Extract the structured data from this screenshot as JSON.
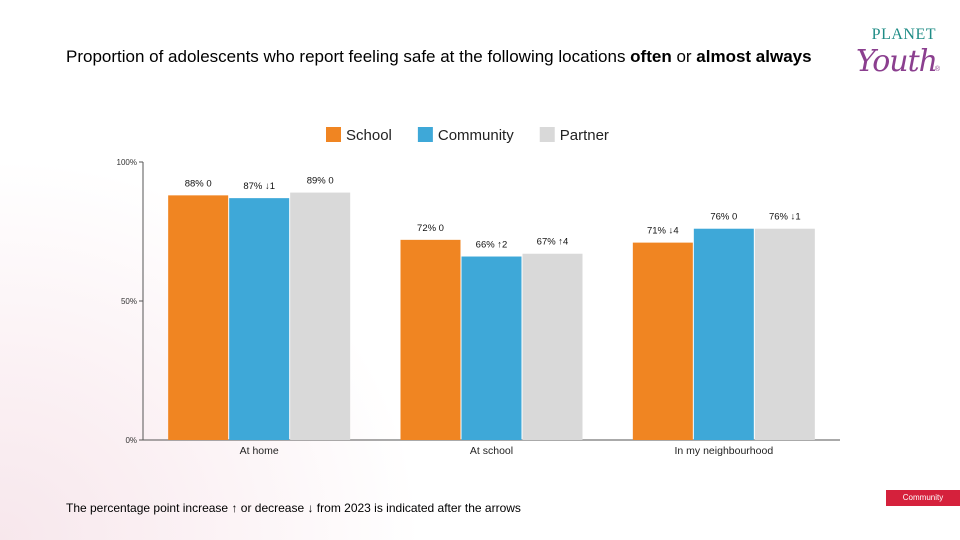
{
  "title": {
    "part1": "Proportion of adolescents who report feeling safe at the following locations ",
    "bold1": "often",
    "part2": " or ",
    "bold2": "almost always"
  },
  "logo": {
    "line1": "PLANET",
    "line2": "Youth",
    "reg": "®"
  },
  "footnote": "The percentage point increase ↑ or decrease ↓ from 2023 is indicated after the arrows",
  "tag": "Community",
  "chart_data": {
    "type": "bar",
    "categories": [
      "At home",
      "At school",
      "In my neighbourhood"
    ],
    "series": [
      {
        "name": "School",
        "color": "#f08522",
        "values": [
          88,
          72,
          71
        ],
        "labels": [
          "88% 0",
          "72% 0",
          "71% ↓4"
        ]
      },
      {
        "name": "Community",
        "color": "#3ea8d8",
        "values": [
          87,
          66,
          76
        ],
        "labels": [
          "87% ↓1",
          "66% ↑2",
          "76% 0"
        ]
      },
      {
        "name": "Partner",
        "color": "#d9d9d9",
        "values": [
          89,
          67,
          76
        ],
        "labels": [
          "89% 0",
          "67% ↑4",
          "76% ↓1"
        ]
      }
    ],
    "yticks": [
      "0%",
      "50%",
      "100%"
    ],
    "ylim": [
      0,
      100
    ],
    "legend": "top-center",
    "grid": false
  }
}
